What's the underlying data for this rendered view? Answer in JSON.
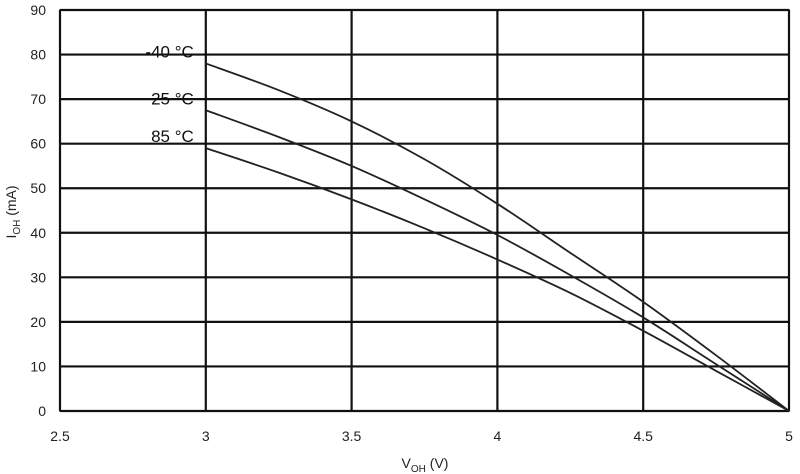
{
  "chart_data": {
    "type": "line",
    "xlabel_main": "V",
    "xlabel_sub": "OH",
    "xlabel_unit": " (V)",
    "ylabel_main": "I",
    "ylabel_sub": "OH",
    "ylabel_unit": " (mA)",
    "xlim": [
      2.5,
      5
    ],
    "ylim": [
      0,
      90
    ],
    "xticks": [
      2.5,
      3,
      3.5,
      4,
      4.5,
      5
    ],
    "xtick_labels": [
      "2.5",
      "3",
      "3.5",
      "4",
      "4.5",
      "5"
    ],
    "yticks": [
      0,
      10,
      20,
      30,
      40,
      50,
      60,
      70,
      80,
      90
    ],
    "ytick_labels": [
      "0",
      "10",
      "20",
      "30",
      "40",
      "50",
      "60",
      "70",
      "80",
      "90"
    ],
    "grid": true,
    "series": [
      {
        "name": "-40 °C",
        "x": [
          3.0,
          3.25,
          3.5,
          3.75,
          4.0,
          4.25,
          4.5,
          4.75,
          5.0
        ],
        "y": [
          78,
          72,
          65,
          56.5,
          46.5,
          35.5,
          24.5,
          12.5,
          0
        ]
      },
      {
        "name": "25 °C",
        "x": [
          3.0,
          3.25,
          3.5,
          3.75,
          4.0,
          4.25,
          4.5,
          4.75,
          5.0
        ],
        "y": [
          67.5,
          61.5,
          55,
          47.5,
          39.5,
          30.5,
          21,
          10.5,
          0
        ]
      },
      {
        "name": "85 °C",
        "x": [
          3.0,
          3.25,
          3.5,
          3.75,
          4.0,
          4.25,
          4.5,
          4.75,
          5.0
        ],
        "y": [
          59,
          53.5,
          47.5,
          41,
          34,
          26.5,
          18,
          9,
          0
        ]
      }
    ]
  }
}
